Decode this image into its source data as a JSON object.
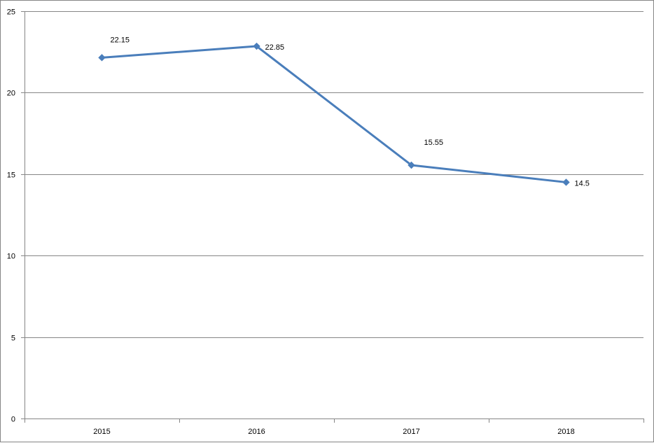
{
  "chart_data": {
    "type": "line",
    "categories": [
      "2015",
      "2016",
      "2017",
      "2018"
    ],
    "series": [
      {
        "values": [
          22.15,
          22.85,
          15.55,
          14.5
        ],
        "data_labels": [
          "22.15",
          "22.85",
          "15.55",
          "14.5"
        ],
        "color": "#4a7ebb",
        "marker": "diamond"
      }
    ],
    "title": "",
    "xlabel": "",
    "ylabel": "",
    "ylim": [
      0,
      25
    ],
    "y_ticks": [
      0,
      5,
      10,
      15,
      20,
      25
    ],
    "y_tick_labels": [
      "0",
      "5",
      "10",
      "15",
      "20",
      "25"
    ],
    "grid": true,
    "legend": "none",
    "gridline_color": "#868686",
    "axis_color": "#868686"
  }
}
